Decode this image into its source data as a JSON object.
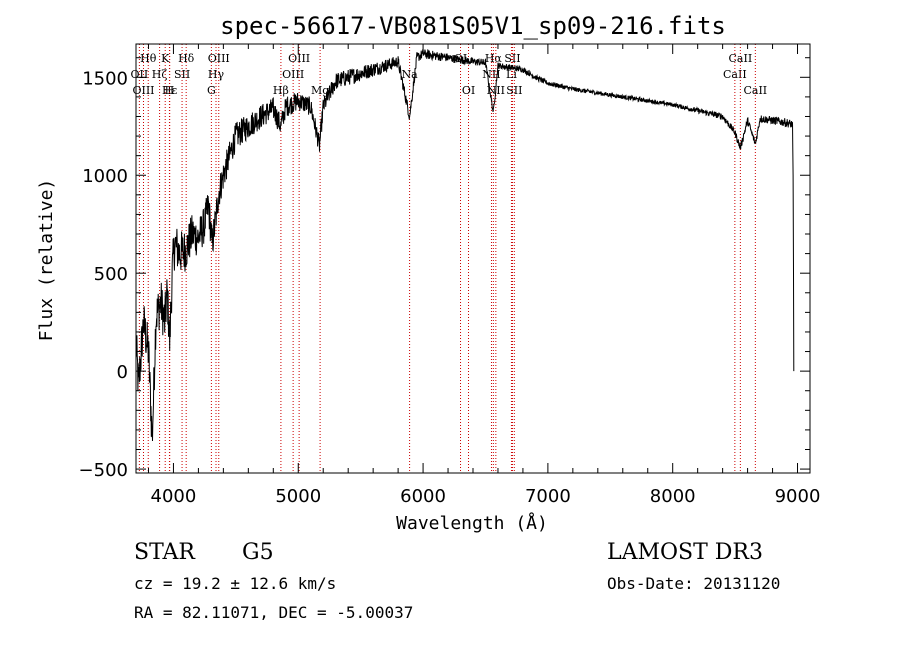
{
  "chart_data": {
    "type": "line",
    "title": "spec-56617-VB081S05V1_sp09-216.fits",
    "xlabel": "Wavelength (Å)",
    "ylabel": "Flux (relative)",
    "xlim": [
      3700,
      9100
    ],
    "ylim": [
      -520,
      1670
    ],
    "x_ticks": [
      4000,
      5000,
      6000,
      7000,
      8000,
      9000
    ],
    "y_ticks": [
      -500,
      0,
      500,
      1000,
      1500
    ],
    "x_tick_labels": [
      "4000",
      "5000",
      "6000",
      "7000",
      "8000",
      "9000"
    ],
    "y_tick_labels": [
      "−500",
      "0",
      "500",
      "1000",
      "1500"
    ],
    "line_color": "#000000",
    "marker_color": "#cc0000",
    "spectrum_anchors": [
      [
        3700,
        150
      ],
      [
        3720,
        -80
      ],
      [
        3760,
        250
      ],
      [
        3800,
        100
      ],
      [
        3830,
        -350
      ],
      [
        3860,
        280
      ],
      [
        3900,
        350
      ],
      [
        3930,
        250
      ],
      [
        3950,
        400
      ],
      [
        3970,
        150
      ],
      [
        3990,
        500
      ],
      [
        4010,
        650
      ],
      [
        4050,
        600
      ],
      [
        4100,
        620
      ],
      [
        4150,
        700
      ],
      [
        4200,
        680
      ],
      [
        4250,
        750
      ],
      [
        4280,
        850
      ],
      [
        4310,
        650
      ],
      [
        4340,
        780
      ],
      [
        4360,
        900
      ],
      [
        4400,
        1000
      ],
      [
        4450,
        1100
      ],
      [
        4500,
        1200
      ],
      [
        4600,
        1250
      ],
      [
        4700,
        1300
      ],
      [
        4800,
        1340
      ],
      [
        4860,
        1250
      ],
      [
        4900,
        1350
      ],
      [
        5000,
        1380
      ],
      [
        5100,
        1350
      ],
      [
        5170,
        1150
      ],
      [
        5200,
        1350
      ],
      [
        5300,
        1480
      ],
      [
        5400,
        1500
      ],
      [
        5500,
        1520
      ],
      [
        5600,
        1540
      ],
      [
        5700,
        1560
      ],
      [
        5800,
        1580
      ],
      [
        5892,
        1300
      ],
      [
        5950,
        1600
      ],
      [
        6000,
        1620
      ],
      [
        6100,
        1610
      ],
      [
        6200,
        1600
      ],
      [
        6300,
        1590
      ],
      [
        6400,
        1580
      ],
      [
        6500,
        1575
      ],
      [
        6563,
        1320
      ],
      [
        6600,
        1560
      ],
      [
        6700,
        1550
      ],
      [
        6800,
        1540
      ],
      [
        6900,
        1500
      ],
      [
        7000,
        1470
      ],
      [
        7200,
        1440
      ],
      [
        7400,
        1420
      ],
      [
        7600,
        1400
      ],
      [
        7800,
        1380
      ],
      [
        8000,
        1360
      ],
      [
        8200,
        1330
      ],
      [
        8400,
        1300
      ],
      [
        8498,
        1220
      ],
      [
        8542,
        1140
      ],
      [
        8600,
        1280
      ],
      [
        8662,
        1160
      ],
      [
        8700,
        1290
      ],
      [
        8800,
        1280
      ],
      [
        8900,
        1270
      ],
      [
        8960,
        1260
      ],
      [
        8965,
        1000
      ],
      [
        8970,
        0
      ]
    ],
    "spectrum_noise": [
      [
        3700,
        120
      ],
      [
        4000,
        120
      ],
      [
        4500,
        70
      ],
      [
        5000,
        50
      ],
      [
        5500,
        40
      ],
      [
        6000,
        25
      ],
      [
        7000,
        12
      ],
      [
        8000,
        10
      ],
      [
        8500,
        18
      ],
      [
        8970,
        22
      ]
    ],
    "lines": [
      {
        "label": "Hθ",
        "wave": 3798,
        "row": 0
      },
      {
        "label": "OII",
        "wave": 3727,
        "row": 1
      },
      {
        "label": "OIII",
        "wave": 3760,
        "row": 2
      },
      {
        "label": "Hζ",
        "wave": 3889,
        "row": 1
      },
      {
        "label": "K",
        "wave": 3934,
        "row": 0
      },
      {
        "label": "Hε",
        "wave": 3970,
        "row": 2
      },
      {
        "label": "H",
        "wave": 3968,
        "row": 2
      },
      {
        "label": "SII",
        "wave": 4069,
        "row": 1
      },
      {
        "label": "Hδ",
        "wave": 4102,
        "row": 0
      },
      {
        "label": "G",
        "wave": 4304,
        "row": 2
      },
      {
        "label": "Hγ",
        "wave": 4341,
        "row": 1
      },
      {
        "label": "OIII",
        "wave": 4363,
        "row": 0
      },
      {
        "label": "Hβ",
        "wave": 4861,
        "row": 2
      },
      {
        "label": "OIII",
        "wave": 4959,
        "row": 1
      },
      {
        "label": "OIII",
        "wave": 5007,
        "row": 0
      },
      {
        "label": "Mg",
        "wave": 5175,
        "row": 2
      },
      {
        "label": "Na",
        "wave": 5892,
        "row": 1
      },
      {
        "label": "OI",
        "wave": 6300,
        "row": 0
      },
      {
        "label": "OI",
        "wave": 6364,
        "row": 2
      },
      {
        "label": "NII",
        "wave": 6548,
        "row": 1
      },
      {
        "label": "Hα",
        "wave": 6563,
        "row": 0
      },
      {
        "label": "NII",
        "wave": 6583,
        "row": 2
      },
      {
        "label": "SII",
        "wave": 6716,
        "row": 0
      },
      {
        "label": "SII",
        "wave": 6731,
        "row": 2
      },
      {
        "label": "Li",
        "wave": 6708,
        "row": 1
      },
      {
        "label": "CaII",
        "wave": 8498,
        "row": 1
      },
      {
        "label": "CaII",
        "wave": 8542,
        "row": 0
      },
      {
        "label": "CaII",
        "wave": 8662,
        "row": 2
      }
    ]
  },
  "info": {
    "class": "STAR",
    "subclass": "G5",
    "survey": "LAMOST DR3",
    "cz": "cz = 19.2 ± 12.6 km/s",
    "obs_date": "Obs-Date: 20131120",
    "radec": "RA =  82.11071, DEC =  -5.00037"
  }
}
